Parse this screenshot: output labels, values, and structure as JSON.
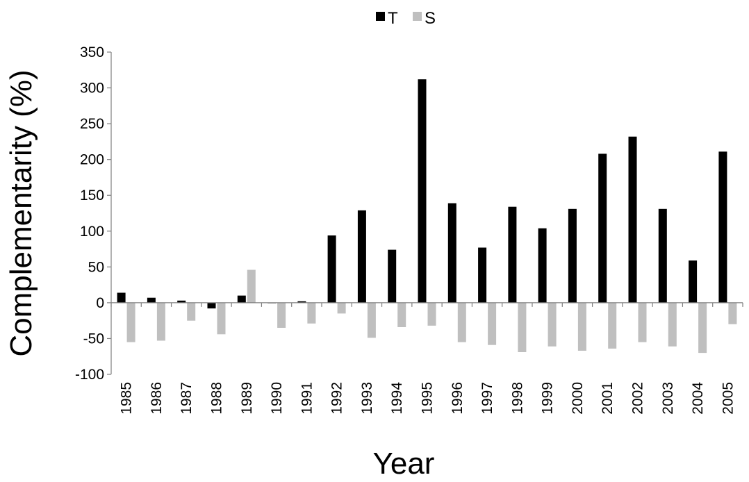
{
  "chart_data": {
    "type": "bar",
    "title": "",
    "xlabel": "Year",
    "ylabel": "Complementarity (%)",
    "ylim": [
      -100,
      350
    ],
    "yticks": [
      -100,
      -50,
      0,
      50,
      100,
      150,
      200,
      250,
      300,
      350
    ],
    "ytick_labels": [
      "-100",
      "-50",
      "0",
      "50",
      "100",
      "150",
      "200",
      "250",
      "300",
      "350"
    ],
    "legend_position": "top-center",
    "grid": false,
    "categories": [
      "1985",
      "1986",
      "1987",
      "1988",
      "1989",
      "1990",
      "1991",
      "1992",
      "1993",
      "1994",
      "1995",
      "1996",
      "1997",
      "1998",
      "1999",
      "2000",
      "2001",
      "2002",
      "2003",
      "2004",
      "2005"
    ],
    "series": [
      {
        "name": "T",
        "color": "#000000",
        "values": [
          14,
          7,
          3,
          -8,
          10,
          0,
          2,
          94,
          129,
          74,
          312,
          139,
          77,
          134,
          104,
          131,
          208,
          232,
          131,
          59,
          211
        ]
      },
      {
        "name": "S",
        "color": "#bfbfbf",
        "values": [
          -55,
          -53,
          -25,
          -44,
          46,
          -35,
          -29,
          -15,
          -49,
          -34,
          -32,
          -55,
          -59,
          -69,
          -61,
          -67,
          -64,
          -55,
          -61,
          -70,
          -30
        ]
      }
    ]
  }
}
